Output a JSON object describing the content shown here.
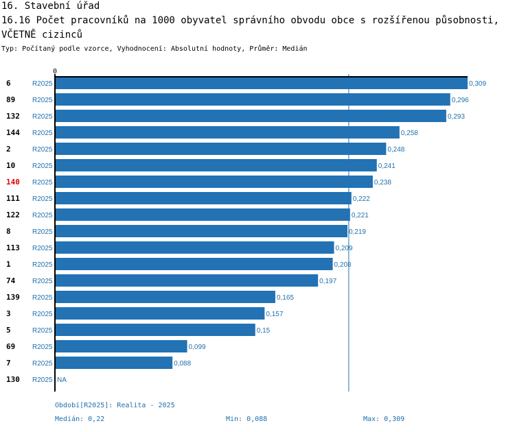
{
  "header": {
    "section": "16. Stavební úřad",
    "title": "16.16 Počet pracovníků na 1000 obyvatel správního obvodu obce s rozšířenou působnosti, VČETNĚ cizinců",
    "subtitle": "Typ: Počítaný podle vzorce, Vyhodnocení: Absolutní hodnoty, Průměr: Medián"
  },
  "colors": {
    "bar": "#2272b4",
    "value_text": "#1f6fad",
    "highlight": "#e00000",
    "axis": "#000000",
    "median_line": "#2272b4"
  },
  "chart_data": {
    "type": "bar",
    "orientation": "horizontal",
    "axis_zero_label": "0",
    "xlim": [
      0,
      0.309
    ],
    "period_label": "R2025",
    "highlight_category": "140",
    "median": 0.22,
    "categories": [
      "6",
      "89",
      "132",
      "144",
      "2",
      "10",
      "140",
      "111",
      "122",
      "8",
      "113",
      "1",
      "74",
      "139",
      "3",
      "5",
      "69",
      "7",
      "130"
    ],
    "values": [
      0.309,
      0.296,
      0.293,
      0.258,
      0.248,
      0.241,
      0.238,
      0.222,
      0.221,
      0.219,
      0.209,
      0.208,
      0.197,
      0.165,
      0.157,
      0.15,
      0.099,
      0.088,
      null
    ],
    "value_labels": [
      "0,309",
      "0,296",
      "0,293",
      "0,258",
      "0,248",
      "0,241",
      "0,238",
      "0,222",
      "0,221",
      "0,219",
      "0,209",
      "0,208",
      "0,197",
      "0,165",
      "0,157",
      "0,15",
      "0,099",
      "0,088",
      "NA"
    ]
  },
  "footer": {
    "period": "Období[R2025]: Realita - 2025",
    "median": "Medián: 0,22",
    "min": "Min: 0,088",
    "max": "Max: 0,309"
  }
}
